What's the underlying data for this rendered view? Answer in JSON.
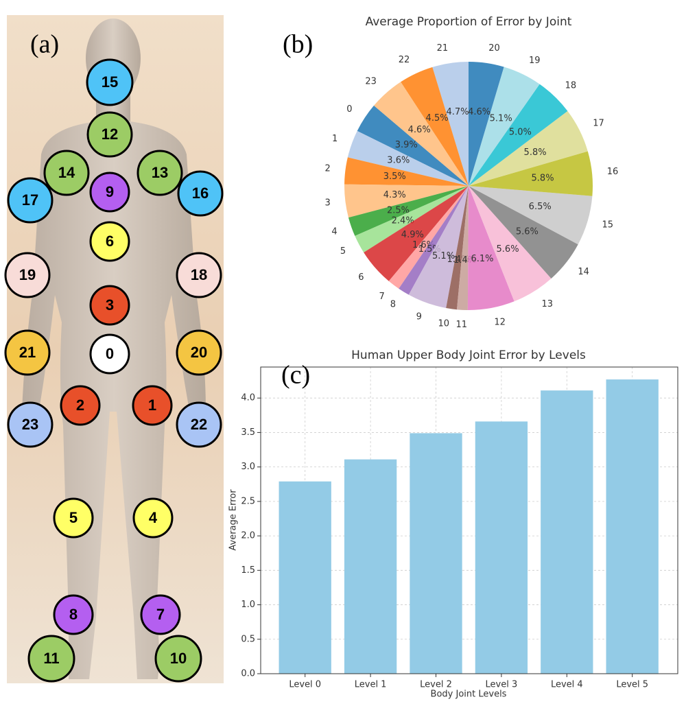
{
  "diagram": {
    "panel_label": "(a)",
    "joints": [
      {
        "label": "0",
        "color": "#ffffff"
      },
      {
        "label": "1",
        "color": "#e8502a"
      },
      {
        "label": "2",
        "color": "#e8502a"
      },
      {
        "label": "3",
        "color": "#e8502a"
      },
      {
        "label": "4",
        "color": "#ffff66"
      },
      {
        "label": "5",
        "color": "#ffff66"
      },
      {
        "label": "6",
        "color": "#ffff66"
      },
      {
        "label": "7",
        "color": "#b45ff0"
      },
      {
        "label": "8",
        "color": "#b45ff0"
      },
      {
        "label": "9",
        "color": "#b45ff0"
      },
      {
        "label": "10",
        "color": "#9ccc65"
      },
      {
        "label": "11",
        "color": "#9ccc65"
      },
      {
        "label": "12",
        "color": "#9ccc65"
      },
      {
        "label": "13",
        "color": "#9ccc65"
      },
      {
        "label": "14",
        "color": "#9ccc65"
      },
      {
        "label": "15",
        "color": "#4fc3f7"
      },
      {
        "label": "16",
        "color": "#4fc3f7"
      },
      {
        "label": "17",
        "color": "#4fc3f7"
      },
      {
        "label": "18",
        "color": "#f8dcd8"
      },
      {
        "label": "19",
        "color": "#f8dcd8"
      },
      {
        "label": "20",
        "color": "#f4c542"
      },
      {
        "label": "21",
        "color": "#f4c542"
      },
      {
        "label": "22",
        "color": "#a9c4f5"
      },
      {
        "label": "23",
        "color": "#a9c4f5"
      }
    ]
  },
  "chart_data": [
    {
      "type": "pie",
      "panel_label": "(b)",
      "title": "Average Proportion of Error by Joint",
      "categories": [
        "0",
        "1",
        "2",
        "3",
        "4",
        "5",
        "6",
        "7",
        "8",
        "9",
        "10",
        "11",
        "12",
        "13",
        "14",
        "15",
        "16",
        "17",
        "18",
        "19",
        "20",
        "21",
        "22",
        "23"
      ],
      "values": [
        3.9,
        3.6,
        3.5,
        4.3,
        2.5,
        2.4,
        4.9,
        1.6,
        1.5,
        5.1,
        1.4,
        1.4,
        6.1,
        5.6,
        5.6,
        6.5,
        5.8,
        5.8,
        5.0,
        5.1,
        4.6,
        4.7,
        4.5,
        4.6
      ],
      "value_labels": [
        "3.9%",
        "3.6%",
        "3.5%",
        "4.3%",
        "2.5%",
        "2.4%",
        "4.9%",
        "1.6%",
        "1.5%",
        "5.1%",
        "1.4%",
        "1.4%",
        "6.1%",
        "5.6%",
        "5.6%",
        "6.5%",
        "5.8%",
        "5.8%",
        "5.0%",
        "5.1%",
        "4.6%",
        "4.7%",
        "4.5%",
        "4.6%"
      ],
      "colors": [
        "#1f77b4",
        "#aec7e8",
        "#ff7f0e",
        "#ffbb78",
        "#2ca02c",
        "#98df8a",
        "#d62728",
        "#ff9896",
        "#9467bd",
        "#c5b0d5",
        "#8c564b",
        "#c49c94",
        "#e377c2",
        "#f7b6d2",
        "#7f7f7f",
        "#c7c7c7",
        "#bcbd22",
        "#dbdb8d",
        "#17becf",
        "#9edae5",
        "#1f77b4",
        "#aec7e8",
        "#ff7f0e",
        "#ffbb78"
      ]
    },
    {
      "type": "bar",
      "panel_label": "(c)",
      "title": "Human Upper Body Joint Error by Levels",
      "x_label": "Body Joint Levels",
      "y_label": "Average Error",
      "categories": [
        "Level 0",
        "Level 1",
        "Level 2",
        "Level 3",
        "Level 4",
        "Level 5"
      ],
      "values": [
        2.79,
        3.11,
        3.49,
        3.66,
        4.11,
        4.27
      ],
      "color": "#93cbe6",
      "ylim": [
        0,
        4.45
      ],
      "yticks": [
        {
          "value": 0,
          "label": "0.0"
        },
        0.5,
        {
          "value": 1,
          "label": "1.0"
        },
        1.5,
        {
          "value": 2,
          "label": "2.0"
        },
        2.5,
        {
          "value": 3,
          "label": "3.0"
        },
        3.5,
        {
          "value": 4,
          "label": "4.0"
        }
      ],
      "grid": true
    }
  ]
}
